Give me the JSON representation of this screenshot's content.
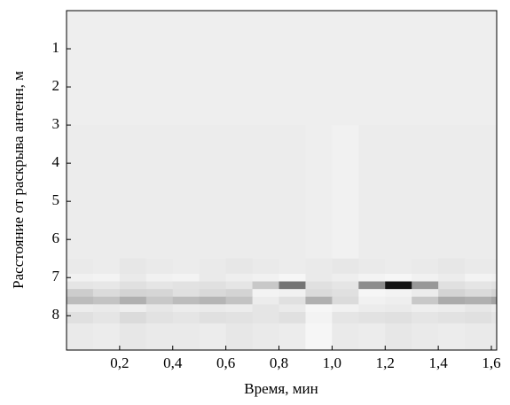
{
  "chart_data": {
    "type": "heatmap",
    "xlabel": "Время, мин",
    "ylabel": "Расстояние от раскрыва антенн, м",
    "xbins": [
      0,
      0.1,
      0.2,
      0.3,
      0.4,
      0.5,
      0.6,
      0.7,
      0.8,
      0.9,
      1.0,
      1.1,
      1.2,
      1.3,
      1.4,
      1.5,
      1.6,
      1.62
    ],
    "ybins": [
      0,
      3,
      6.5,
      6.9,
      7.1,
      7.3,
      7.5,
      7.7,
      7.9,
      8.2,
      8.9
    ],
    "z": [
      [
        0.04,
        0.04,
        0.04,
        0.04,
        0.04,
        0.04,
        0.04,
        0.04,
        0.04,
        0.04,
        0.04,
        0.04,
        0.04,
        0.04,
        0.04,
        0.04,
        0.04
      ],
      [
        0.05,
        0.05,
        0.05,
        0.05,
        0.05,
        0.05,
        0.05,
        0.05,
        0.05,
        0.04,
        0.03,
        0.05,
        0.05,
        0.05,
        0.05,
        0.05,
        0.05
      ],
      [
        0.06,
        0.05,
        0.07,
        0.06,
        0.05,
        0.06,
        0.07,
        0.06,
        0.05,
        0.06,
        0.07,
        0.06,
        0.05,
        0.06,
        0.07,
        0.06,
        0.06
      ],
      [
        0.03,
        0.02,
        0.06,
        0.03,
        0.02,
        0.06,
        0.04,
        0.03,
        0.01,
        0.06,
        0.04,
        0.02,
        0.01,
        0.03,
        0.05,
        0.02,
        0.03
      ],
      [
        0.08,
        0.07,
        0.1,
        0.08,
        0.09,
        0.1,
        0.08,
        0.2,
        0.55,
        0.1,
        0.08,
        0.45,
        0.95,
        0.4,
        0.1,
        0.08,
        0.09
      ],
      [
        0.18,
        0.12,
        0.15,
        0.14,
        0.1,
        0.13,
        0.15,
        0.02,
        0.03,
        0.12,
        0.1,
        0.01,
        0.02,
        0.05,
        0.15,
        0.12,
        0.15
      ],
      [
        0.25,
        0.22,
        0.3,
        0.2,
        0.25,
        0.28,
        0.22,
        0.05,
        0.1,
        0.3,
        0.12,
        0.03,
        0.04,
        0.2,
        0.32,
        0.3,
        0.35
      ],
      [
        0.05,
        0.06,
        0.04,
        0.07,
        0.05,
        0.06,
        0.05,
        0.08,
        0.06,
        0.01,
        0.03,
        0.05,
        0.06,
        0.04,
        0.05,
        0.07,
        0.05
      ],
      [
        0.1,
        0.08,
        0.12,
        0.09,
        0.08,
        0.1,
        0.09,
        0.08,
        0.1,
        0.02,
        0.08,
        0.09,
        0.1,
        0.08,
        0.09,
        0.1,
        0.08
      ],
      [
        0.06,
        0.05,
        0.07,
        0.06,
        0.06,
        0.05,
        0.07,
        0.06,
        0.05,
        0.01,
        0.06,
        0.05,
        0.07,
        0.06,
        0.05,
        0.06,
        0.06
      ]
    ],
    "xlim": [
      0,
      1.62
    ],
    "ylim": [
      0,
      8.9
    ],
    "y_inverted": true,
    "xticks": [
      {
        "value": 0.2,
        "label": "0,2"
      },
      {
        "value": 0.4,
        "label": "0,4"
      },
      {
        "value": 0.6,
        "label": "0,6"
      },
      {
        "value": 0.8,
        "label": "0,8"
      },
      {
        "value": 1.0,
        "label": "1,0"
      },
      {
        "value": 1.2,
        "label": "1,2"
      },
      {
        "value": 1.4,
        "label": "1,4"
      },
      {
        "value": 1.6,
        "label": "1,6"
      }
    ],
    "yticks": [
      1,
      2,
      3,
      4,
      5,
      6,
      7,
      8
    ]
  }
}
